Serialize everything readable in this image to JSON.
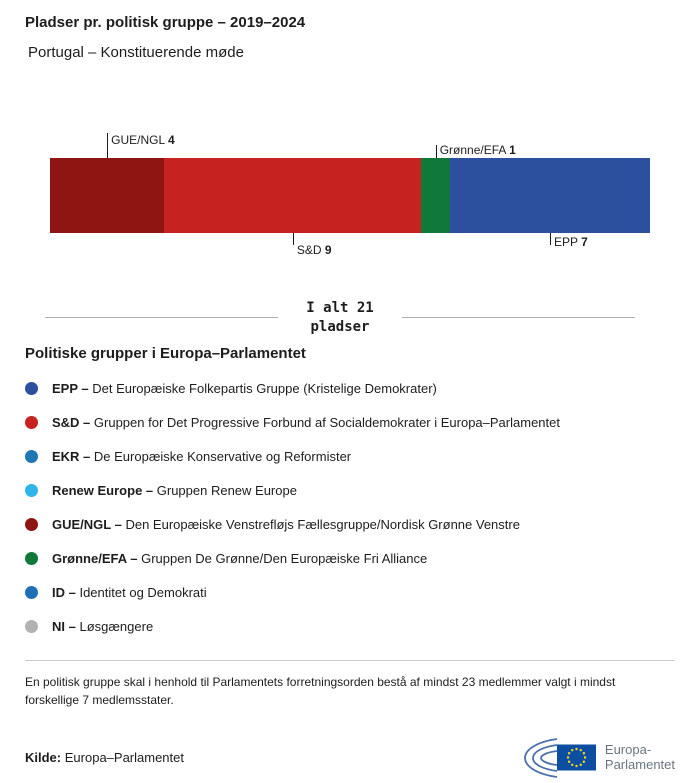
{
  "header": {
    "title": "Pladser pr. politisk gruppe – 2019–2024",
    "subtitle": "Portugal – Konstituerende møde"
  },
  "chart_data": {
    "type": "bar",
    "orientation": "horizontal_stacked",
    "title": "Pladser pr. politisk gruppe – 2019–2024",
    "subtitle": "Portugal – Konstituerende møde",
    "categories": [
      "GUE/NGL",
      "S&D",
      "Grønne/EFA",
      "EPP"
    ],
    "values": [
      4,
      9,
      1,
      7
    ],
    "colors": [
      "#8e1512",
      "#c6221f",
      "#107939",
      "#2d509e"
    ],
    "total": 21,
    "annotations": [
      {
        "label": "GUE/NGL",
        "value": 4,
        "side": "above",
        "line_len": 25,
        "label_shift": 0
      },
      {
        "label": "Grønne/EFA",
        "value": 1,
        "side": "above",
        "line_len": 13,
        "label_shift": -2
      },
      {
        "label": "S&D",
        "value": 9,
        "side": "below",
        "line_len": 12,
        "label_shift": 10
      },
      {
        "label": "EPP",
        "value": 7,
        "side": "below",
        "line_len": 12,
        "label_shift": 2
      }
    ]
  },
  "total_label": {
    "line1": "I alt 21",
    "line2": "pladser"
  },
  "legend": {
    "heading": "Politiske grupper i Europa–Parlamentet",
    "items": [
      {
        "abbr": "EPP –",
        "name": "Det Europæiske Folkepartis Gruppe (Kristelige Demokrater)",
        "color": "#2d509e"
      },
      {
        "abbr": "S&D –",
        "name": "Gruppen for Det Progressive Forbund af Socialdemokrater i Europa–Parlamentet",
        "color": "#c6221f"
      },
      {
        "abbr": "EKR –",
        "name": "De Europæiske Konservative og Reformister",
        "color": "#1e78b4"
      },
      {
        "abbr": "Renew Europe –",
        "name": "Gruppen Renew Europe",
        "color": "#2fb5ea"
      },
      {
        "abbr": "GUE/NGL –",
        "name": "Den Europæiske Venstrefløjs Fællesgruppe/Nordisk Grønne Venstre",
        "color": "#8e1512"
      },
      {
        "abbr": "Grønne/EFA –",
        "name": "Gruppen De Grønne/Den Europæiske Fri Alliance",
        "color": "#107939"
      },
      {
        "abbr": "ID –",
        "name": "Identitet og Demokrati",
        "color": "#1e6fb8"
      },
      {
        "abbr": "NI –",
        "name": "Løsgængere",
        "color": "#b2b2b2"
      }
    ]
  },
  "footnote": "En politisk gruppe skal i henhold til Parlamentets forretningsorden bestå af mindst 23 medlemmer valgt i mindst forskellige 7 medlemsstater.",
  "source": {
    "label": "Kilde:",
    "value": "Europa–Parlamentet"
  },
  "logo": {
    "line1": "Europa-",
    "line2": "Parlamentet"
  }
}
